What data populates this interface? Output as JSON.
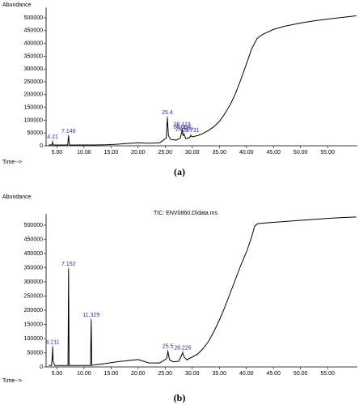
{
  "chart_data": [
    {
      "type": "line",
      "caption": "(a)",
      "y_label": "Abundance",
      "x_label": "Time-->",
      "color": "#000000",
      "label_color": "#2e3192",
      "xlim": [
        3,
        60.5
      ],
      "ylim": [
        0,
        540000
      ],
      "xticks": [
        {
          "value": 5,
          "label": "5.00"
        },
        {
          "value": 10,
          "label": "10.00"
        },
        {
          "value": 15,
          "label": "15.00"
        },
        {
          "value": 20,
          "label": "20.00"
        },
        {
          "value": 25,
          "label": "25.00"
        },
        {
          "value": 30,
          "label": "30.00"
        },
        {
          "value": 35,
          "label": "35.00"
        },
        {
          "value": 40,
          "label": "40.00"
        },
        {
          "value": 45,
          "label": "45.00"
        },
        {
          "value": 50,
          "label": "50.00"
        },
        {
          "value": 55,
          "label": "55.00"
        }
      ],
      "yticks": [
        0,
        50000,
        100000,
        150000,
        200000,
        250000,
        300000,
        350000,
        400000,
        450000,
        500000
      ],
      "x": [
        3.5,
        4.0,
        4.15,
        4.21,
        4.3,
        5,
        6,
        7.0,
        7.1,
        7.146,
        7.2,
        7.3,
        8,
        10,
        12,
        14,
        16,
        18,
        20,
        22,
        24,
        25.2,
        25.4,
        25.6,
        26,
        27,
        27.8,
        28.064,
        28.123,
        28.3,
        28.5,
        28.8,
        29.5,
        29.731,
        30,
        31,
        32,
        33,
        34,
        35,
        36,
        37,
        38,
        39,
        40,
        41,
        42,
        42.5,
        43,
        44,
        45,
        47,
        50,
        53,
        55,
        57,
        59,
        60.3
      ],
      "values": [
        3000,
        3000,
        8000,
        15000,
        3000,
        3000,
        3000,
        3000,
        30000,
        38000,
        30000,
        3000,
        3000,
        3000,
        3000,
        4000,
        6000,
        9000,
        12000,
        10000,
        12000,
        30000,
        110000,
        40000,
        25000,
        22000,
        30000,
        55000,
        65000,
        40000,
        45000,
        28000,
        32000,
        40000,
        35000,
        40000,
        48000,
        60000,
        75000,
        95000,
        125000,
        160000,
        205000,
        260000,
        320000,
        380000,
        420000,
        428000,
        435000,
        445000,
        455000,
        467000,
        480000,
        490000,
        495000,
        500000,
        505000,
        508000
      ],
      "annotations": [
        {
          "x": 4.21,
          "y": 15000,
          "text": "4.21"
        },
        {
          "x": 7.146,
          "y": 38000,
          "text": "7.146"
        },
        {
          "x": 25.4,
          "y": 110000,
          "text": "25.4"
        },
        {
          "x": 28.123,
          "y": 65000,
          "text": "28.123"
        },
        {
          "x": 28.064,
          "y": 55000,
          "text": "28.064"
        },
        {
          "x": 28.5,
          "y": 45000,
          "text": "28.500"
        },
        {
          "x": 29.731,
          "y": 40000,
          "text": "29.731"
        }
      ]
    },
    {
      "type": "line",
      "caption": "(b)",
      "y_label": "Abundance",
      "x_label": "Time-->",
      "header": "TIC: ENV0860.D\\data.ms",
      "color": "#000000",
      "label_color": "#2e3192",
      "xlim": [
        3,
        60.5
      ],
      "ylim": [
        0,
        540000
      ],
      "xticks": [
        {
          "value": 5,
          "label": "5.00"
        },
        {
          "value": 10,
          "label": "10.00"
        },
        {
          "value": 15,
          "label": "15.00"
        },
        {
          "value": 20,
          "label": "20.00"
        },
        {
          "value": 25,
          "label": "25.00"
        },
        {
          "value": 30,
          "label": "30.00"
        },
        {
          "value": 35,
          "label": "35.00"
        },
        {
          "value": 40,
          "label": "40.00"
        },
        {
          "value": 45,
          "label": "45.00"
        },
        {
          "value": 50,
          "label": "50.00"
        },
        {
          "value": 55,
          "label": "55.00"
        }
      ],
      "yticks": [
        0,
        50000,
        100000,
        150000,
        200000,
        250000,
        300000,
        350000,
        400000,
        450000,
        500000
      ],
      "x": [
        3.5,
        4.0,
        4.15,
        4.211,
        4.3,
        4.6,
        6,
        7.05,
        7.152,
        7.25,
        8,
        10,
        11.2,
        11.329,
        11.45,
        12,
        14,
        16,
        18,
        20,
        22,
        24,
        25.3,
        25.5,
        25.8,
        26.5,
        27.5,
        28.0,
        28.226,
        28.5,
        29,
        30,
        31,
        32,
        33,
        34,
        35,
        36,
        37,
        38,
        39,
        40,
        41,
        41.5,
        42,
        43,
        45,
        47,
        50,
        53,
        55,
        57,
        59,
        60.3
      ],
      "values": [
        5000,
        5000,
        40000,
        70000,
        20000,
        5000,
        5000,
        5000,
        345000,
        5000,
        5000,
        5000,
        5000,
        165000,
        5000,
        8000,
        12000,
        18000,
        22000,
        26000,
        14000,
        14000,
        30000,
        55000,
        25000,
        18000,
        20000,
        40000,
        50000,
        35000,
        25000,
        35000,
        45000,
        65000,
        90000,
        125000,
        165000,
        210000,
        260000,
        310000,
        360000,
        405000,
        460000,
        495000,
        505000,
        507000,
        510000,
        513000,
        517000,
        521000,
        524000,
        526000,
        528000,
        529000
      ],
      "annotations": [
        {
          "x": 4.211,
          "y": 70000,
          "text": "4.211"
        },
        {
          "x": 7.152,
          "y": 345000,
          "text": "7.152"
        },
        {
          "x": 11.329,
          "y": 165000,
          "text": "11.329"
        },
        {
          "x": 25.5,
          "y": 55000,
          "text": "25.5"
        },
        {
          "x": 28.226,
          "y": 50000,
          "text": "28.226"
        }
      ]
    }
  ]
}
